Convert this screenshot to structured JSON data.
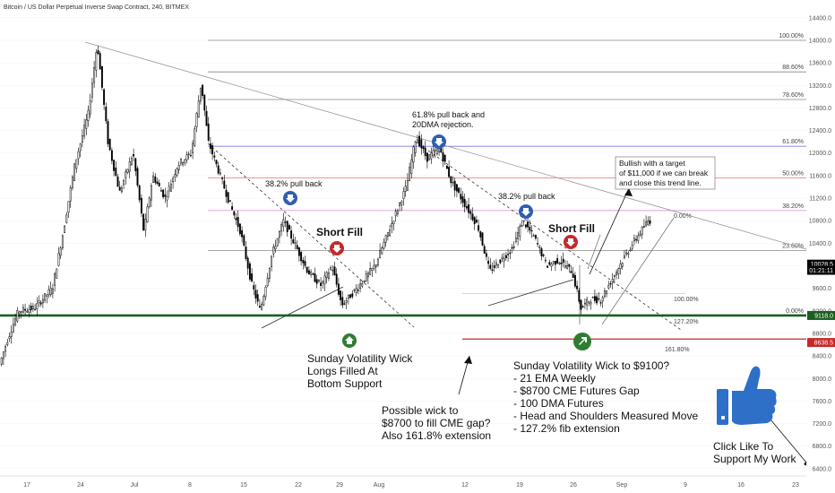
{
  "chart_data": {
    "type": "candlestick",
    "title": "Bitcoin / US Dollar Perpetual Inverse Swap Contract, 240, BITMEX",
    "y_axis": {
      "ticks": [
        "14400.0",
        "14000.0",
        "13600.0",
        "13200.0",
        "12800.0",
        "12400.0",
        "12000.0",
        "11600.0",
        "11200.0",
        "10800.0",
        "10400.0",
        "10000.0",
        "9600.0",
        "9200.0",
        "8800.0",
        "8400.0",
        "8000.0",
        "7600.0",
        "7200.0",
        "6800.0",
        "6400.0"
      ],
      "tick_values": [
        14400,
        14000,
        13600,
        13200,
        12800,
        12400,
        12000,
        11600,
        11200,
        10800,
        10400,
        10000,
        9600,
        9200,
        8800,
        8400,
        8000,
        7600,
        7200,
        6800,
        6400
      ],
      "range": [
        6350,
        14620
      ]
    },
    "x_axis": {
      "ticks": [
        "17",
        "24",
        "Jul",
        "8",
        "15",
        "22",
        "29",
        "Aug",
        "12",
        "19",
        "26",
        "Sep",
        "9",
        "16",
        "23"
      ]
    },
    "price_labels": [
      {
        "text": "10028.5",
        "value": 10028.5,
        "color": "#000000"
      },
      {
        "text": "01:21:11",
        "value": 9920,
        "color": "#000000"
      },
      {
        "text": "9118.0",
        "value": 9118,
        "color": "#1b5e20"
      },
      {
        "text": "8638.5",
        "value": 8638.5,
        "color": "#c62828"
      }
    ],
    "fib_levels": [
      {
        "label": "100.00%",
        "value": 14000,
        "color": "#888888"
      },
      {
        "label": "88.60%",
        "value": 13440,
        "color": "#888888"
      },
      {
        "label": "78.60%",
        "value": 12950,
        "color": "#888888"
      },
      {
        "label": "61.80%",
        "value": 12120,
        "color": "#7b7bd6"
      },
      {
        "label": "50.00%",
        "value": 11560,
        "color": "#e57373"
      },
      {
        "label": "38.20%",
        "value": 10980,
        "color": "#d58ad5"
      },
      {
        "label": "23.60%",
        "value": 10270,
        "color": "#888888"
      },
      {
        "label": "0.00%",
        "value": 9118,
        "color": "#888888"
      }
    ],
    "secondary_fib": [
      {
        "label": "0.00%",
        "value": 10980
      },
      {
        "label": "100.00%",
        "value": 9510
      },
      {
        "label": "127.20%",
        "value": 9118
      },
      {
        "label": "161.80%",
        "value": 8680
      }
    ],
    "support_level": 9118,
    "cme_gap_level": 8700
  },
  "annotations": {
    "pullback_1": "38.2% pull back",
    "pullback_2_line1": "61.8% pull back and",
    "pullback_2_line2": "20DMA rejection.",
    "pullback_3": "38.2% pull back",
    "short_fill_1": "Short Fill",
    "short_fill_2": "Short Fill",
    "bullish_line1": "Bullish with a target",
    "bullish_line2": "of $11,000 if we can break",
    "bullish_line3": "and close this trend line.",
    "sunday_wick_line1": "Sunday Volatility Wick",
    "sunday_wick_line2": "Longs Filled At",
    "sunday_wick_line3": "Bottom Support",
    "cme_gap_line1": "Possible wick to",
    "cme_gap_line2": "$8700 to fill CME gap?",
    "cme_gap_line3": "Also 161.8% extension",
    "target_title": "Sunday Volatility Wick to $9100?",
    "target_items": [
      "- 21 EMA Weekly",
      "- $8700 CME Futures Gap",
      "- 100 DMA Futures",
      "- Head and Shoulders Measured Move",
      "- 127.2% fib extension"
    ],
    "like_line1": "Click Like To",
    "like_line2": "Support My Work"
  },
  "colors": {
    "candle": "#000000",
    "support": "#1b5e20",
    "resistance": "#c62828",
    "blue_arrow": "#2e5fb0",
    "red_arrow": "#c62828",
    "green_arrow": "#2e7d32",
    "thumb": "#2e6fc8"
  },
  "icons": {
    "like": "thumbs-up-icon",
    "down_arrow": "arrow-down-circle-icon",
    "up_arrow": "arrow-up-circle-icon"
  }
}
